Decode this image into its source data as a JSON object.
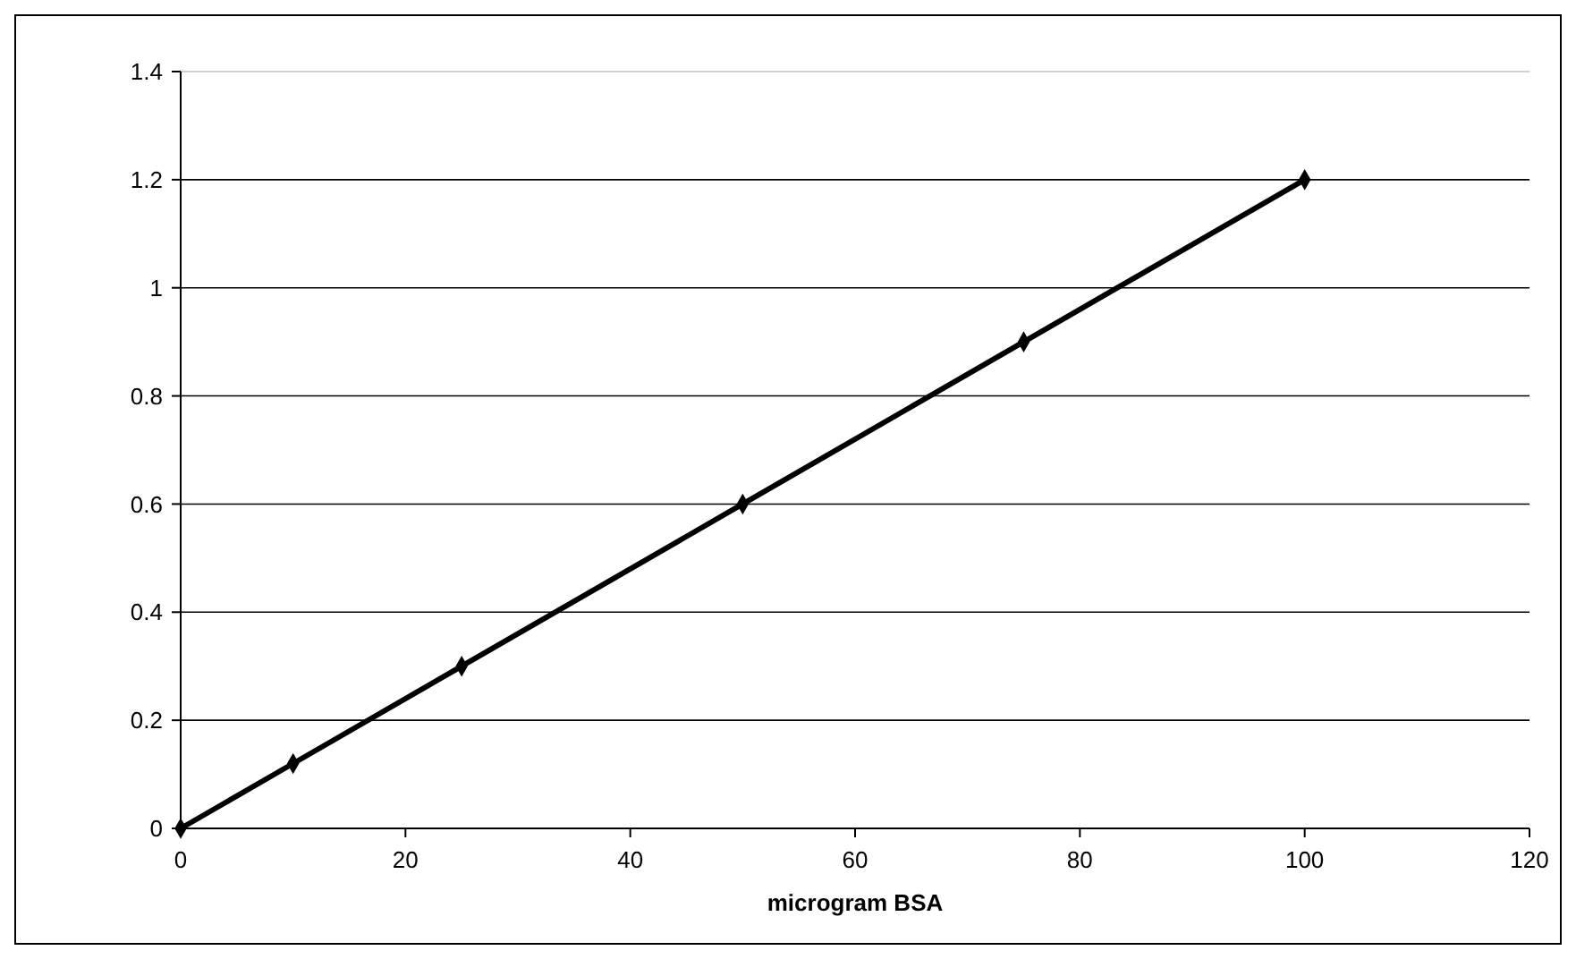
{
  "chart_data": {
    "type": "line",
    "xlabel": "microgram BSA",
    "x": [
      0,
      10,
      25,
      50,
      75,
      100
    ],
    "series": [
      {
        "color": "#000000",
        "values": [
          0,
          0.12,
          0.3,
          0.6,
          0.9,
          1.2
        ]
      }
    ],
    "xlim": [
      0,
      120
    ],
    "xticks": [
      0,
      20,
      40,
      60,
      80,
      100,
      120
    ],
    "ylim": [
      0,
      1.4
    ],
    "yticks": [
      0,
      0.2,
      0.4,
      0.6,
      0.8,
      1,
      1.2,
      1.4
    ],
    "grid": "y",
    "marker": "diamond",
    "line_style": "solid"
  }
}
